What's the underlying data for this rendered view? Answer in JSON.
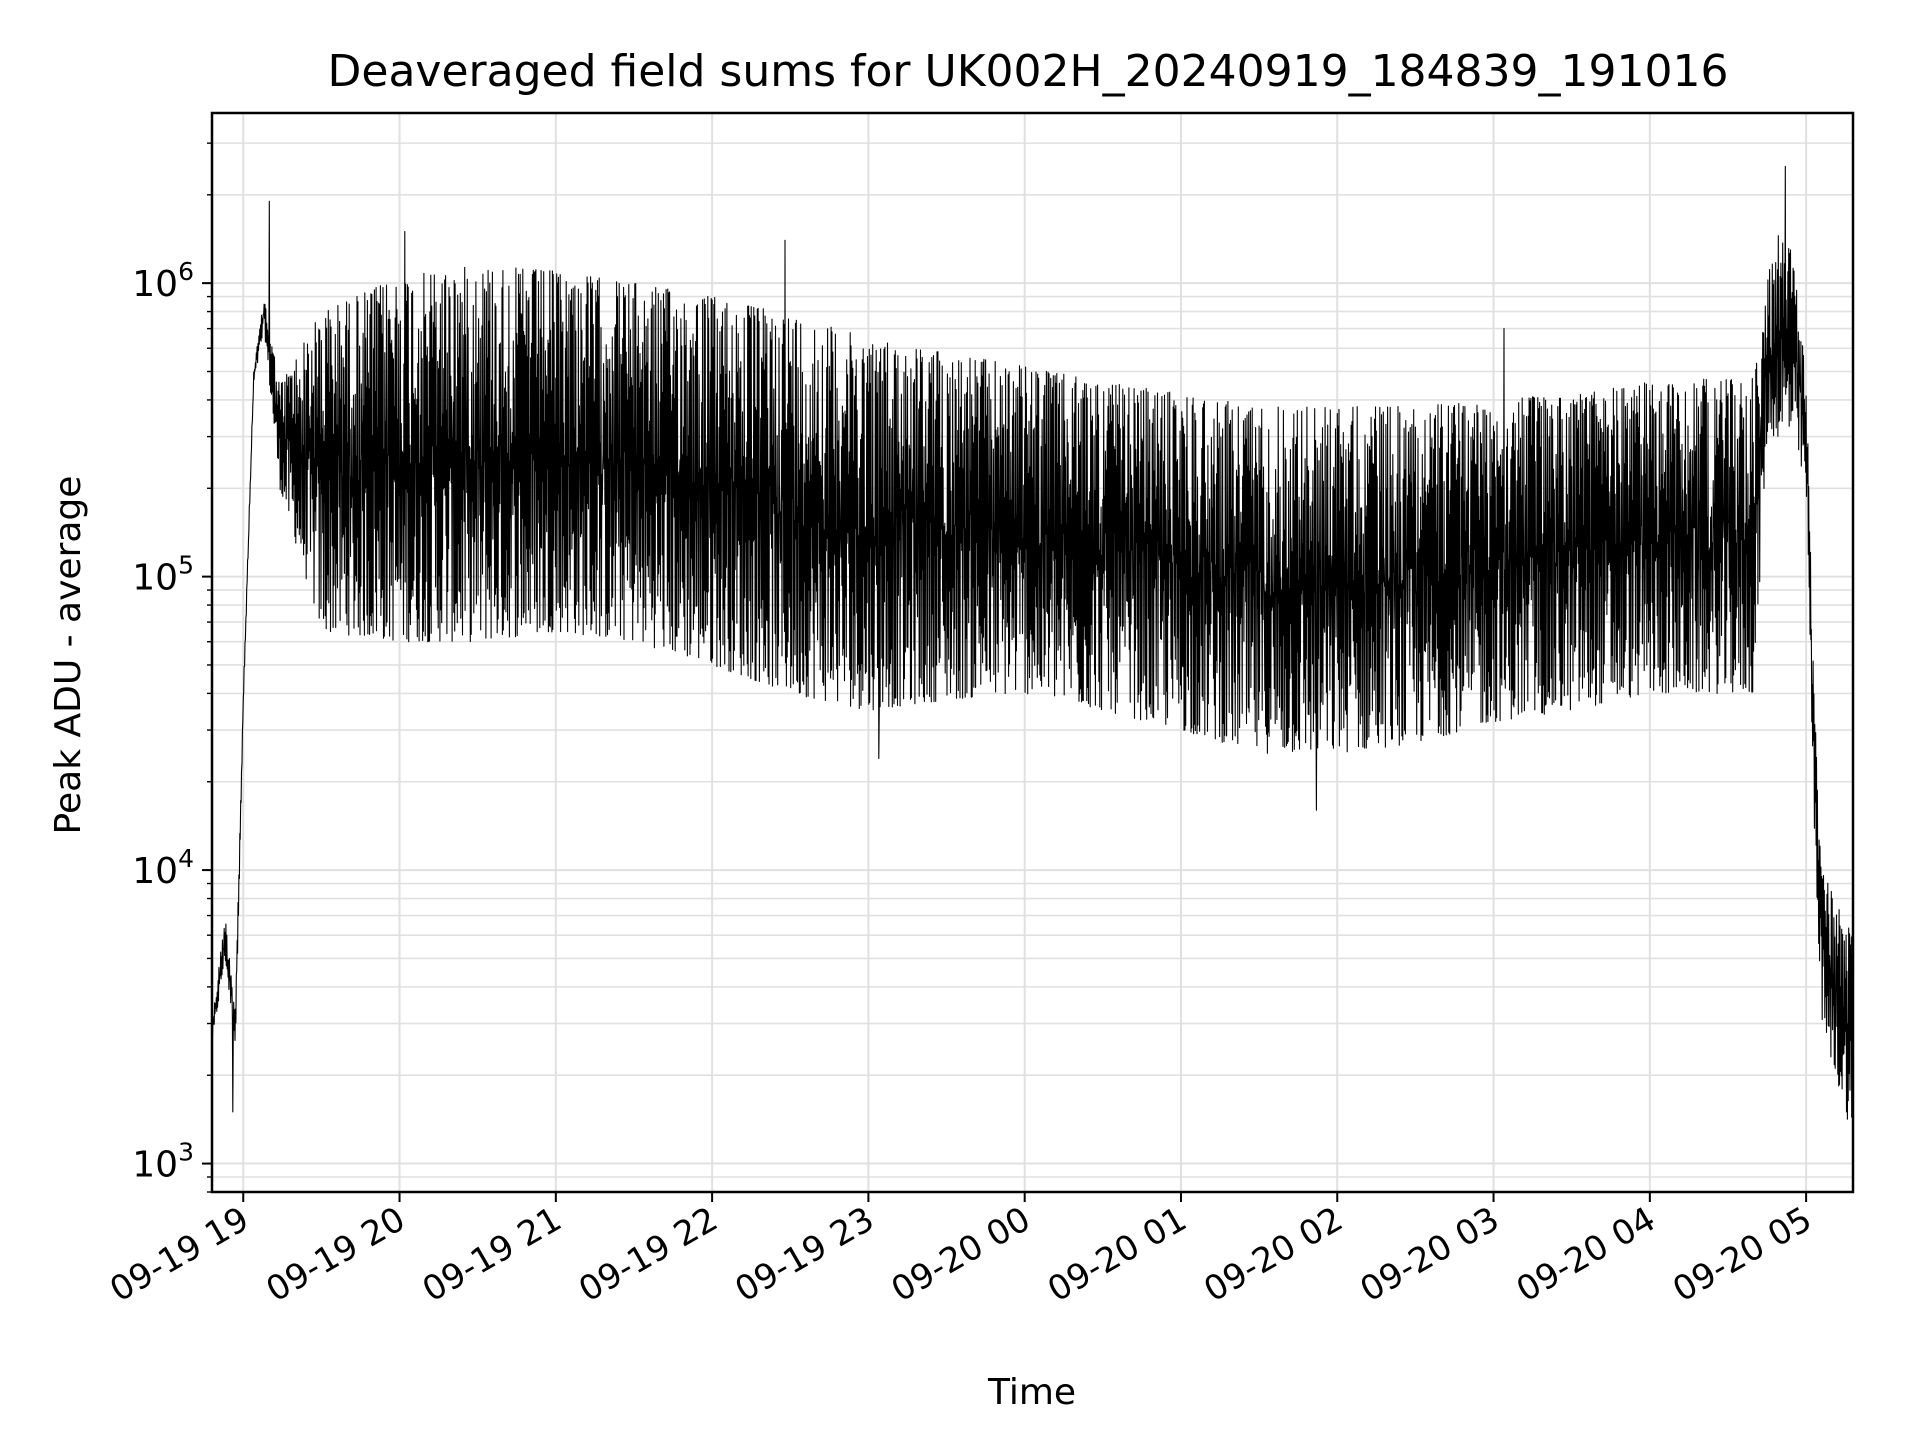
{
  "chart_data": {
    "type": "line",
    "title": "Deaveraged field sums for UK002H_20240919_184839_191016",
    "xlabel": "Time",
    "ylabel": "Peak ADU - average",
    "yscale": "log",
    "ylim": [
      800,
      3800000
    ],
    "xlim": [
      "2024-09-19 18:48",
      "2024-09-20 05:18"
    ],
    "grid": true,
    "x_ticks": [
      {
        "t": "2024-09-19 19:00",
        "label": "09-19 19"
      },
      {
        "t": "2024-09-19 20:00",
        "label": "09-19 20"
      },
      {
        "t": "2024-09-19 21:00",
        "label": "09-19 21"
      },
      {
        "t": "2024-09-19 22:00",
        "label": "09-19 22"
      },
      {
        "t": "2024-09-19 23:00",
        "label": "09-19 23"
      },
      {
        "t": "2024-09-20 00:00",
        "label": "09-20 00"
      },
      {
        "t": "2024-09-20 01:00",
        "label": "09-20 01"
      },
      {
        "t": "2024-09-20 02:00",
        "label": "09-20 02"
      },
      {
        "t": "2024-09-20 03:00",
        "label": "09-20 03"
      },
      {
        "t": "2024-09-20 04:00",
        "label": "09-20 04"
      },
      {
        "t": "2024-09-20 05:00",
        "label": "09-20 05"
      }
    ],
    "y_ticks": [
      {
        "value": 1000,
        "base": "10",
        "exp": "3"
      },
      {
        "value": 10000,
        "base": "10",
        "exp": "4"
      },
      {
        "value": 100000,
        "base": "10",
        "exp": "5"
      },
      {
        "value": 1000000,
        "base": "10",
        "exp": "6"
      }
    ],
    "line_color": "#000000",
    "grid_color": "#e0e0e0",
    "series": [
      {
        "upper_envelope": [
          {
            "t": "2024-09-19 18:48",
            "v": 3000
          },
          {
            "t": "2024-09-19 18:53",
            "v": 7000
          },
          {
            "t": "2024-09-19 18:57",
            "v": 3500
          },
          {
            "t": "2024-09-19 19:00",
            "v": 40000
          },
          {
            "t": "2024-09-19 19:04",
            "v": 500000
          },
          {
            "t": "2024-09-19 19:08",
            "v": 900000
          },
          {
            "t": "2024-09-19 19:14",
            "v": 450000
          },
          {
            "t": "2024-09-19 19:30",
            "v": 800000
          },
          {
            "t": "2024-09-19 20:00",
            "v": 1050000
          },
          {
            "t": "2024-09-19 20:30",
            "v": 1150000
          },
          {
            "t": "2024-09-19 21:00",
            "v": 1100000
          },
          {
            "t": "2024-09-19 21:30",
            "v": 1000000
          },
          {
            "t": "2024-09-19 22:00",
            "v": 900000
          },
          {
            "t": "2024-09-19 22:30",
            "v": 780000
          },
          {
            "t": "2024-09-19 23:00",
            "v": 650000
          },
          {
            "t": "2024-09-19 23:30",
            "v": 580000
          },
          {
            "t": "2024-09-20 00:00",
            "v": 520000
          },
          {
            "t": "2024-09-20 00:30",
            "v": 460000
          },
          {
            "t": "2024-09-20 01:00",
            "v": 420000
          },
          {
            "t": "2024-09-20 01:30",
            "v": 380000
          },
          {
            "t": "2024-09-20 02:00",
            "v": 380000
          },
          {
            "t": "2024-09-20 02:30",
            "v": 380000
          },
          {
            "t": "2024-09-20 03:00",
            "v": 400000
          },
          {
            "t": "2024-09-20 03:30",
            "v": 420000
          },
          {
            "t": "2024-09-20 04:00",
            "v": 460000
          },
          {
            "t": "2024-09-20 04:40",
            "v": 480000
          },
          {
            "t": "2024-09-20 04:45",
            "v": 1000000
          },
          {
            "t": "2024-09-20 04:50",
            "v": 1800000
          },
          {
            "t": "2024-09-20 04:55",
            "v": 1200000
          },
          {
            "t": "2024-09-20 05:00",
            "v": 500000
          },
          {
            "t": "2024-09-20 05:03",
            "v": 40000
          },
          {
            "t": "2024-09-20 05:06",
            "v": 10000
          },
          {
            "t": "2024-09-20 05:18",
            "v": 6000
          }
        ],
        "lower_envelope": [
          {
            "t": "2024-09-19 18:48",
            "v": 2500
          },
          {
            "t": "2024-09-19 18:53",
            "v": 5000
          },
          {
            "t": "2024-09-19 18:57",
            "v": 2500
          },
          {
            "t": "2024-09-19 19:00",
            "v": 35000
          },
          {
            "t": "2024-09-19 19:04",
            "v": 450000
          },
          {
            "t": "2024-09-19 19:08",
            "v": 700000
          },
          {
            "t": "2024-09-19 19:14",
            "v": 200000
          },
          {
            "t": "2024-09-19 19:30",
            "v": 65000
          },
          {
            "t": "2024-09-19 20:00",
            "v": 60000
          },
          {
            "t": "2024-09-19 20:30",
            "v": 60000
          },
          {
            "t": "2024-09-19 21:00",
            "v": 65000
          },
          {
            "t": "2024-09-19 21:30",
            "v": 60000
          },
          {
            "t": "2024-09-19 22:00",
            "v": 50000
          },
          {
            "t": "2024-09-19 22:30",
            "v": 40000
          },
          {
            "t": "2024-09-19 23:00",
            "v": 35000
          },
          {
            "t": "2024-09-19 23:30",
            "v": 38000
          },
          {
            "t": "2024-09-20 00:00",
            "v": 40000
          },
          {
            "t": "2024-09-20 00:30",
            "v": 35000
          },
          {
            "t": "2024-09-20 01:00",
            "v": 30000
          },
          {
            "t": "2024-09-20 01:30",
            "v": 25000
          },
          {
            "t": "2024-09-20 02:00",
            "v": 25000
          },
          {
            "t": "2024-09-20 02:30",
            "v": 27000
          },
          {
            "t": "2024-09-20 03:00",
            "v": 32000
          },
          {
            "t": "2024-09-20 03:30",
            "v": 35000
          },
          {
            "t": "2024-09-20 04:00",
            "v": 40000
          },
          {
            "t": "2024-09-20 04:40",
            "v": 40000
          },
          {
            "t": "2024-09-20 04:45",
            "v": 300000
          },
          {
            "t": "2024-09-20 04:50",
            "v": 300000
          },
          {
            "t": "2024-09-20 04:55",
            "v": 300000
          },
          {
            "t": "2024-09-20 05:00",
            "v": 200000
          },
          {
            "t": "2024-09-20 05:03",
            "v": 15000
          },
          {
            "t": "2024-09-20 05:06",
            "v": 3000
          },
          {
            "t": "2024-09-20 05:18",
            "v": 1200
          }
        ],
        "spikes": [
          {
            "t": "2024-09-19 19:10",
            "v": 1900000
          },
          {
            "t": "2024-09-19 20:02",
            "v": 1500000
          },
          {
            "t": "2024-09-19 22:28",
            "v": 1400000
          },
          {
            "t": "2024-09-20 03:04",
            "v": 700000
          },
          {
            "t": "2024-09-20 04:52",
            "v": 2500000
          },
          {
            "t": "2024-09-19 18:56",
            "v": 1500
          },
          {
            "t": "2024-09-20 01:52",
            "v": 16000
          },
          {
            "t": "2024-09-19 23:04",
            "v": 24000
          }
        ],
        "samples_per_minute": 6
      }
    ]
  }
}
